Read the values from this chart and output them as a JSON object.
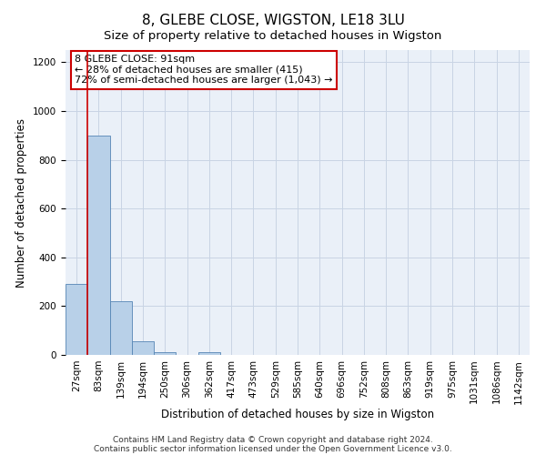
{
  "title": "8, GLEBE CLOSE, WIGSTON, LE18 3LU",
  "subtitle": "Size of property relative to detached houses in Wigston",
  "xlabel": "Distribution of detached houses by size in Wigston",
  "ylabel": "Number of detached properties",
  "bar_labels": [
    "27sqm",
    "83sqm",
    "139sqm",
    "194sqm",
    "250sqm",
    "306sqm",
    "362sqm",
    "417sqm",
    "473sqm",
    "529sqm",
    "585sqm",
    "640sqm",
    "696sqm",
    "752sqm",
    "808sqm",
    "863sqm",
    "919sqm",
    "975sqm",
    "1031sqm",
    "1086sqm",
    "1142sqm"
  ],
  "bar_heights": [
    290,
    900,
    220,
    55,
    10,
    0,
    10,
    0,
    0,
    0,
    0,
    0,
    0,
    0,
    0,
    0,
    0,
    0,
    0,
    0,
    0
  ],
  "bar_color": "#b8d0e8",
  "bar_edge_color": "#5585b5",
  "ylim": [
    0,
    1250
  ],
  "yticks": [
    0,
    200,
    400,
    600,
    800,
    1000,
    1200
  ],
  "grid_color": "#c8d4e4",
  "property_line_color": "#cc0000",
  "annotation_box_text": "8 GLEBE CLOSE: 91sqm\n← 28% of detached houses are smaller (415)\n72% of semi-detached houses are larger (1,043) →",
  "annotation_box_color": "#cc0000",
  "footnote1": "Contains HM Land Registry data © Crown copyright and database right 2024.",
  "footnote2": "Contains public sector information licensed under the Open Government Licence v3.0.",
  "title_fontsize": 11,
  "subtitle_fontsize": 9.5,
  "axis_label_fontsize": 8.5,
  "tick_fontsize": 7.5,
  "annotation_fontsize": 8,
  "footnote_fontsize": 6.5
}
